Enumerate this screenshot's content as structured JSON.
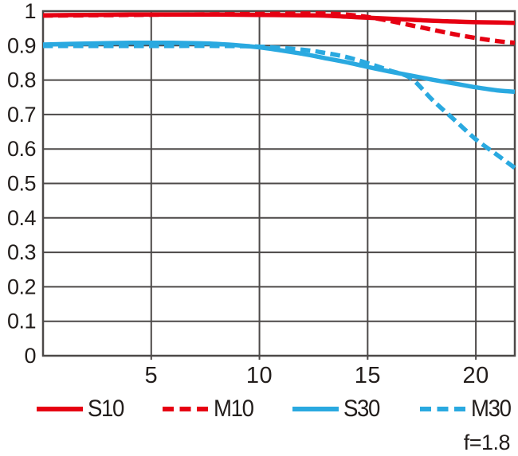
{
  "chart_data": {
    "type": "line",
    "title": "",
    "xlabel": "",
    "ylabel": "",
    "xlim": [
      0,
      21.8
    ],
    "ylim": [
      0,
      1
    ],
    "grid": true,
    "legend_position": "bottom",
    "x_ticks": [
      5,
      10,
      15,
      20
    ],
    "x_tick_labels": [
      "5",
      "10",
      "15",
      "20"
    ],
    "y_ticks": [
      0,
      0.1,
      0.2,
      0.3,
      0.4,
      0.5,
      0.6,
      0.7,
      0.8,
      0.9,
      1
    ],
    "y_tick_labels": [
      "0",
      "0.1",
      "0.2",
      "0.3",
      "0.4",
      "0.5",
      "0.6",
      "0.7",
      "0.8",
      "0.9",
      "1"
    ],
    "x": [
      0,
      2,
      4,
      6,
      8,
      10,
      12,
      13,
      14,
      15,
      16,
      17,
      18,
      19,
      20,
      21,
      21.8
    ],
    "series": [
      {
        "name": "S10",
        "color": "#e60012",
        "style": "solid",
        "values": [
          0.988,
          0.989,
          0.99,
          0.99,
          0.99,
          0.989,
          0.988,
          0.987,
          0.984,
          0.981,
          0.978,
          0.975,
          0.972,
          0.97,
          0.968,
          0.967,
          0.966
        ]
      },
      {
        "name": "M10",
        "color": "#e60012",
        "style": "dashed",
        "values": [
          0.987,
          0.988,
          0.989,
          0.99,
          0.991,
          0.992,
          0.993,
          0.993,
          0.99,
          0.983,
          0.972,
          0.959,
          0.946,
          0.933,
          0.922,
          0.913,
          0.908
        ]
      },
      {
        "name": "S30",
        "color": "#2aa9e0",
        "style": "solid",
        "values": [
          0.903,
          0.906,
          0.908,
          0.908,
          0.905,
          0.895,
          0.876,
          0.864,
          0.852,
          0.838,
          0.825,
          0.813,
          0.801,
          0.79,
          0.779,
          0.77,
          0.766
        ]
      },
      {
        "name": "M30",
        "color": "#2aa9e0",
        "style": "dashed",
        "values": [
          0.899,
          0.899,
          0.899,
          0.899,
          0.899,
          0.897,
          0.888,
          0.879,
          0.867,
          0.849,
          0.828,
          0.805,
          0.742,
          0.685,
          0.628,
          0.582,
          0.545
        ]
      }
    ],
    "annotation": "f=1.8",
    "colors": {
      "red": "#e60012",
      "blue": "#2aa9e0",
      "grid": "#4c4948",
      "text": "#221d1b"
    }
  }
}
